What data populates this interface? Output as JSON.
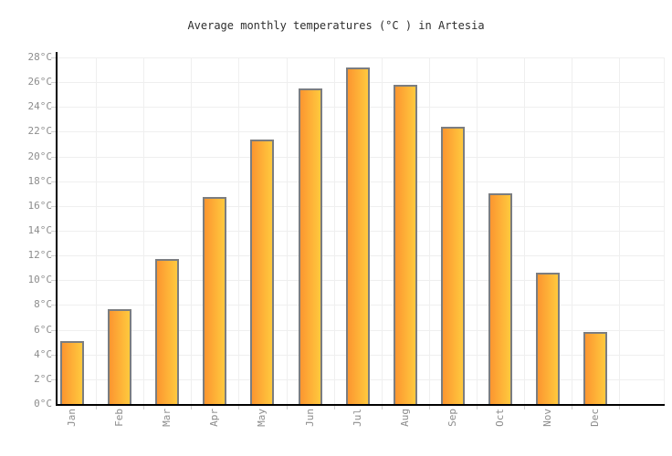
{
  "chart_data": {
    "type": "bar",
    "title": "Average monthly temperatures (°C ) in Artesia",
    "categories": [
      "Jan",
      "Feb",
      "Mar",
      "Apr",
      "May",
      "Jun",
      "Jul",
      "Aug",
      "Sep",
      "Oct",
      "Nov",
      "Dec"
    ],
    "values": [
      5.1,
      7.7,
      11.7,
      16.7,
      21.4,
      25.5,
      27.2,
      25.8,
      22.4,
      17.0,
      10.6,
      5.8
    ],
    "xlabel": "",
    "ylabel": "",
    "ylim": [
      0,
      28
    ],
    "ytick_step": 2,
    "yticks": [
      "0°C",
      "2°C",
      "4°C",
      "6°C",
      "8°C",
      "10°C",
      "12°C",
      "14°C",
      "16°C",
      "18°C",
      "20°C",
      "22°C",
      "24°C",
      "26°C",
      "28°C"
    ],
    "grid": true,
    "legend": false,
    "colors": {
      "bar_gradient_left": "#fc9630",
      "bar_gradient_right": "#ffc93e",
      "bar_border": "#7b7d80",
      "grid": "#efefef",
      "axis": "#000000",
      "tick_label": "#8d8d8d",
      "title": "#2e2e2e",
      "background": "#ffffff"
    }
  }
}
